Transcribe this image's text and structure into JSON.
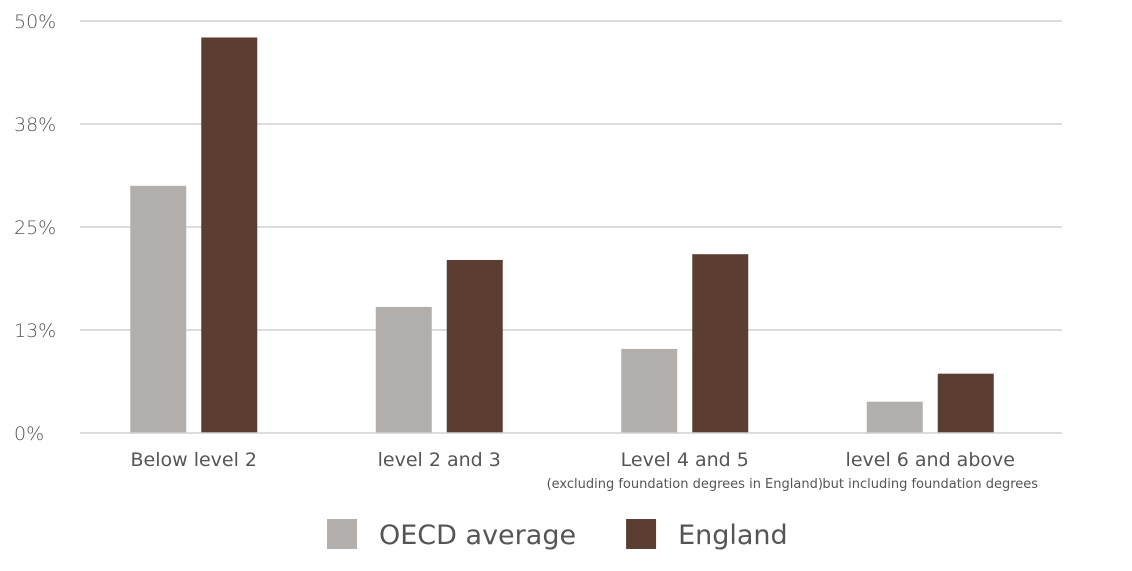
{
  "chart_data": {
    "type": "bar",
    "title": "",
    "xlabel": "",
    "ylabel": "",
    "ylim": [
      0,
      50
    ],
    "y_ticks": [
      "0%",
      "13%",
      "25%",
      "38%",
      "50%"
    ],
    "grid": true,
    "legend_position": "bottom-center",
    "categories": [
      {
        "label": "Below level 2",
        "sublabel": ""
      },
      {
        "label": "level 2 and 3",
        "sublabel": ""
      },
      {
        "label": "Level 4 and 5",
        "sublabel": "(excluding foundation degrees in England)"
      },
      {
        "label": "level 6 and above",
        "sublabel": "but including foundation degrees"
      }
    ],
    "series": [
      {
        "name": "OECD average",
        "color": "#b2aeab",
        "values": [
          30,
          15.3,
          10.2,
          3.8
        ]
      },
      {
        "name": "England",
        "color": "#5b3e31",
        "values": [
          48,
          21,
          21.7,
          7.2
        ]
      }
    ]
  }
}
